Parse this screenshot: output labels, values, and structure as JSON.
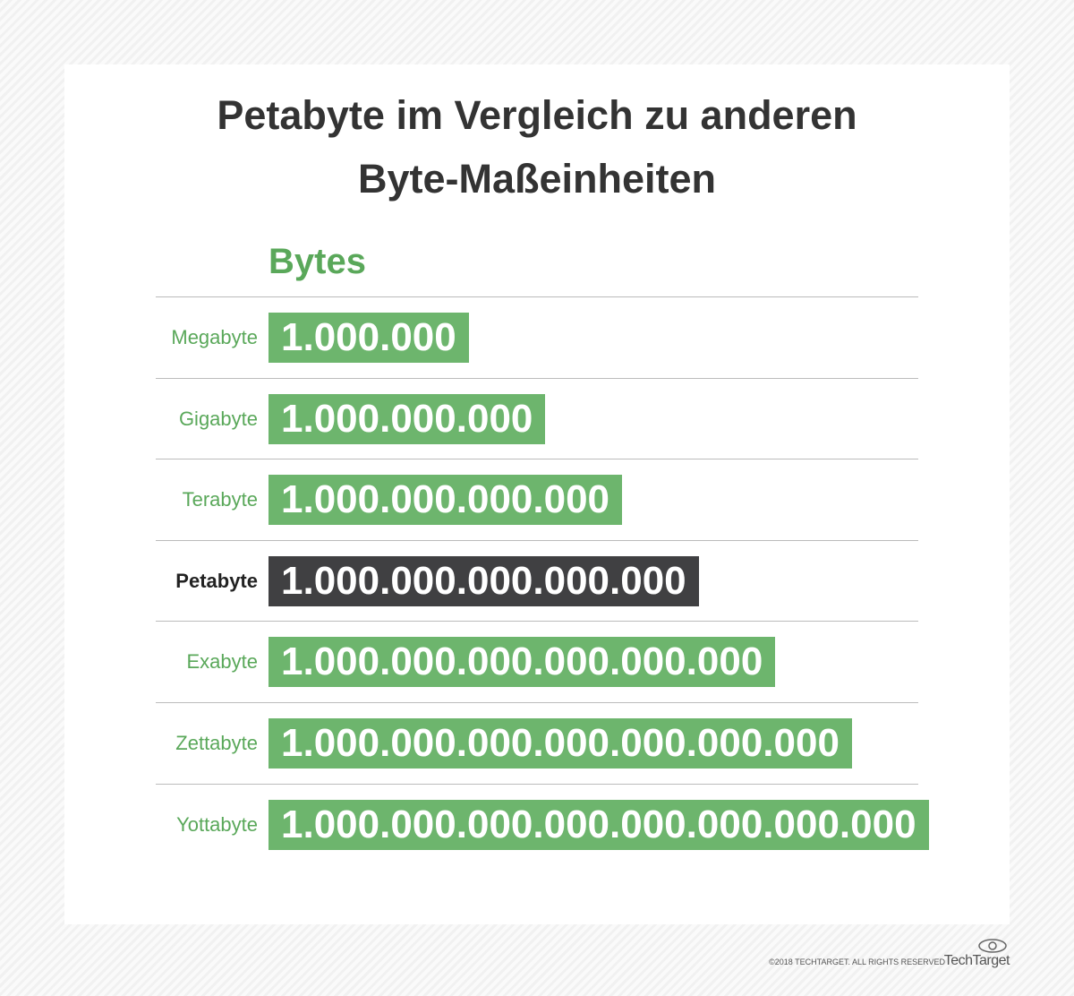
{
  "header": {
    "title": [
      "Petabyte im Vergleich zu anderen",
      "Byte-Maßeinheiten"
    ],
    "column_label": "Bytes"
  },
  "rows": [
    {
      "label": "Megabyte",
      "value": "1.000.000",
      "highlighted": false
    },
    {
      "label": "Gigabyte",
      "value": "1.000.000.000",
      "highlighted": false
    },
    {
      "label": "Terabyte",
      "value": "1.000.000.000.000",
      "highlighted": false
    },
    {
      "label": "Petabyte",
      "value": "1.000.000.000.000.000",
      "highlighted": true
    },
    {
      "label": "Exabyte",
      "value": "1.000.000.000.000.000.000",
      "highlighted": false
    },
    {
      "label": "Zettabyte",
      "value": "1.000.000.000.000.000.000.000",
      "highlighted": false
    },
    {
      "label": "Yottabyte",
      "value": "1.000.000.000.000.000.000.000.000",
      "highlighted": false
    }
  ],
  "footer": {
    "copyright": "©2018 TECHTARGET. ALL RIGHTS RESERVED",
    "logo": "TechTarget"
  }
}
